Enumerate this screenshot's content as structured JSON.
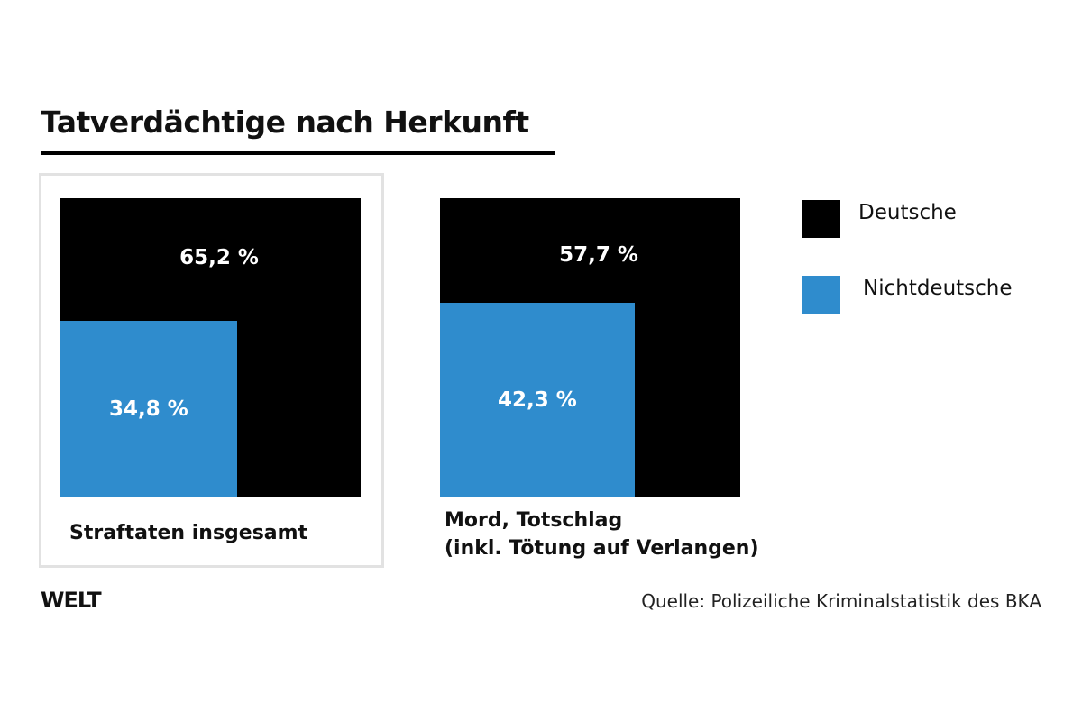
{
  "chart_data": {
    "type": "area-proportion squares",
    "title": "Tatverdächtige nach Herkunft",
    "legend": {
      "placement": "right",
      "entries": [
        {
          "label": "Deutsche",
          "color": "#000000"
        },
        {
          "label": "Nichtdeutsche",
          "color": "#2f8ccd"
        }
      ]
    },
    "panels": [
      {
        "category": "Straftaten insgesamt",
        "deutsche": 65.2,
        "nichtdeutsche": 34.8,
        "deutsche_label": "65,2 %",
        "nichtdeutsche_label": "34,8 %"
      },
      {
        "category_lines": [
          "Mord, Totschlag",
          "(inkl. Tötung auf Verlangen)"
        ],
        "deutsche": 57.7,
        "nichtdeutsche": 42.3,
        "deutsche_label": "57,7 %",
        "nichtdeutsche_label": "42,3 %"
      }
    ]
  },
  "footer": {
    "logo": "WELT",
    "source": "Quelle: Polizeiliche Kriminalstatistik des BKA"
  }
}
